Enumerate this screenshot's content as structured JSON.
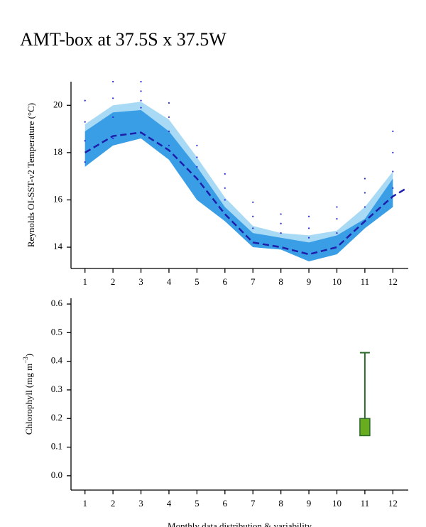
{
  "title": "AMT-box at 37.5S x 37.5W",
  "chart_data": [
    {
      "type": "line",
      "ylabel": [
        "Reynolds OI-SST-v2 Temperature (°C)"
      ],
      "xlim": [
        0.5,
        12.55
      ],
      "ylim": [
        13.1,
        21
      ],
      "xticks": [
        1,
        2,
        3,
        4,
        5,
        6,
        7,
        8,
        9,
        10,
        11,
        12
      ],
      "yticks": [
        14,
        16,
        18,
        20
      ],
      "series": [
        {
          "type": "band",
          "color": "#a9daf5",
          "x": [
            1,
            2,
            3,
            4,
            5,
            6,
            7,
            8,
            9,
            10,
            11,
            12
          ],
          "upper": [
            19.2,
            20.0,
            20.15,
            19.4,
            17.8,
            16.1,
            14.9,
            14.6,
            14.5,
            14.7,
            15.7,
            17.2
          ],
          "lower": [
            17.4,
            18.3,
            18.6,
            17.7,
            16.0,
            15.1,
            14.0,
            13.9,
            13.4,
            13.7,
            14.8,
            15.7
          ]
        },
        {
          "type": "band",
          "color": "#3a9ee6",
          "x": [
            1,
            2,
            3,
            4,
            5,
            6,
            7,
            8,
            9,
            10,
            11,
            12
          ],
          "upper": [
            18.9,
            19.7,
            19.8,
            18.9,
            17.4,
            15.7,
            14.6,
            14.4,
            14.2,
            14.5,
            15.2,
            16.9
          ],
          "lower": [
            17.4,
            18.3,
            18.6,
            17.7,
            16.0,
            15.1,
            14.0,
            13.9,
            13.4,
            13.7,
            14.8,
            15.7
          ]
        },
        {
          "type": "dots",
          "color": "#2828d8",
          "x": [
            1,
            1,
            1,
            1,
            2,
            2,
            2,
            2,
            3,
            3,
            3,
            3,
            4,
            4,
            4,
            4,
            5,
            5,
            5,
            6,
            6,
            6,
            7,
            7,
            7,
            8,
            8,
            8,
            9,
            9,
            9,
            10,
            10,
            10,
            11,
            11,
            11,
            12,
            12,
            12,
            12
          ],
          "values": [
            17.6,
            18.5,
            19.3,
            20.2,
            18.6,
            19.5,
            20.3,
            21.0,
            19.9,
            20.2,
            20.6,
            21.0,
            18.3,
            18.9,
            19.5,
            20.1,
            17.4,
            17.8,
            18.3,
            16.0,
            16.5,
            17.1,
            14.8,
            15.3,
            15.9,
            14.6,
            15.0,
            15.4,
            14.4,
            14.8,
            15.3,
            14.6,
            15.2,
            15.7,
            15.7,
            16.3,
            16.9,
            16.5,
            17.2,
            18.0,
            18.9
          ]
        },
        {
          "type": "dashed",
          "color": "#1e1eaa",
          "x": [
            1,
            2,
            3,
            4,
            5,
            6,
            7,
            8,
            9,
            10,
            11,
            12,
            12.5
          ],
          "values": [
            18.0,
            18.7,
            18.85,
            18.1,
            16.9,
            15.4,
            14.2,
            14.0,
            13.7,
            14.0,
            15.1,
            16.15,
            16.5
          ]
        }
      ]
    },
    {
      "type": "box",
      "ylabel": [
        "Chlorophyll (mg m",
        "−3",
        ")"
      ],
      "xlabel": "Monthly data distribution & variability",
      "xlim": [
        0.5,
        12.55
      ],
      "ylim": [
        -0.05,
        0.62
      ],
      "xticks": [
        1,
        2,
        3,
        4,
        5,
        6,
        7,
        8,
        9,
        10,
        11,
        12
      ],
      "yticks": [
        {
          "value": 0,
          "label": "0.0"
        },
        0.1,
        0.2,
        0.3,
        0.4,
        0.5,
        0.6
      ],
      "boxes": [
        {
          "x": 11,
          "box_low": 0.14,
          "box_high": 0.2,
          "whisker_high": 0.43,
          "color": "#68ad1f",
          "line_color": "#2d6b2d"
        }
      ]
    }
  ]
}
